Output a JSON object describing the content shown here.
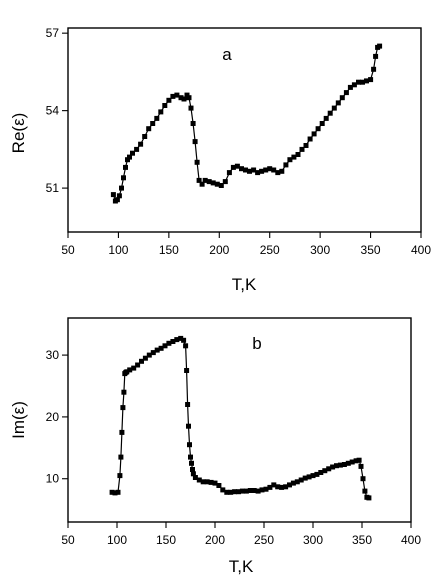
{
  "chart_data": [
    {
      "type": "line",
      "panel_label": "a",
      "xlabel": "T,K",
      "ylabel": "Re(ε)",
      "xlim": [
        50,
        400
      ],
      "ylim": [
        49.3,
        57.2
      ],
      "xticks": [
        50,
        100,
        150,
        200,
        250,
        300,
        350,
        400
      ],
      "yticks": [
        51,
        54,
        57
      ],
      "marker": "square",
      "color": "#000000",
      "x": [
        95,
        97,
        99,
        101,
        103,
        105,
        107,
        109,
        111,
        114,
        118,
        122,
        126,
        130,
        134,
        138,
        142,
        146,
        150,
        154,
        158,
        162,
        165,
        168,
        170,
        172,
        174,
        176,
        178,
        180,
        183,
        186,
        190,
        194,
        198,
        202,
        206,
        210,
        214,
        218,
        222,
        226,
        230,
        234,
        238,
        242,
        246,
        250,
        254,
        258,
        262,
        266,
        270,
        274,
        278,
        282,
        286,
        290,
        294,
        298,
        302,
        306,
        310,
        314,
        318,
        322,
        326,
        330,
        334,
        338,
        342,
        346,
        350,
        353,
        355,
        357,
        359
      ],
      "y": [
        50.75,
        50.5,
        50.55,
        50.7,
        51.0,
        51.4,
        51.8,
        52.1,
        52.2,
        52.35,
        52.5,
        52.7,
        53.0,
        53.3,
        53.5,
        53.7,
        53.95,
        54.2,
        54.4,
        54.55,
        54.6,
        54.5,
        54.45,
        54.6,
        54.5,
        54.1,
        53.5,
        52.8,
        52.0,
        51.3,
        51.15,
        51.3,
        51.25,
        51.2,
        51.15,
        51.1,
        51.25,
        51.6,
        51.8,
        51.85,
        51.75,
        51.7,
        51.65,
        51.7,
        51.6,
        51.65,
        51.7,
        51.75,
        51.7,
        51.6,
        51.65,
        51.9,
        52.1,
        52.2,
        52.3,
        52.5,
        52.65,
        52.9,
        53.1,
        53.3,
        53.5,
        53.7,
        53.9,
        54.1,
        54.3,
        54.5,
        54.7,
        54.9,
        55.0,
        55.1,
        55.1,
        55.15,
        55.2,
        55.6,
        56.1,
        56.45,
        56.5
      ]
    },
    {
      "type": "line",
      "panel_label": "b",
      "xlabel": "T,K",
      "ylabel": "Im(ε)",
      "xlim": [
        50,
        400
      ],
      "ylim": [
        3,
        36
      ],
      "xticks": [
        50,
        100,
        150,
        200,
        250,
        300,
        350,
        400
      ],
      "yticks": [
        10,
        20,
        30
      ],
      "marker": "square",
      "color": "#000000",
      "x": [
        95,
        98,
        101,
        103,
        104,
        105,
        106,
        107,
        108,
        109,
        110,
        113,
        117,
        121,
        125,
        129,
        133,
        137,
        141,
        145,
        149,
        153,
        157,
        161,
        165,
        168,
        170,
        171,
        172,
        173,
        174,
        175,
        176,
        177,
        178,
        180,
        184,
        188,
        192,
        196,
        200,
        204,
        208,
        212,
        216,
        220,
        224,
        228,
        232,
        236,
        240,
        244,
        248,
        252,
        256,
        260,
        264,
        268,
        272,
        276,
        280,
        284,
        288,
        292,
        296,
        300,
        304,
        308,
        312,
        316,
        320,
        324,
        328,
        332,
        336,
        340,
        344,
        347,
        349,
        351,
        353,
        355,
        357
      ],
      "y": [
        7.8,
        7.7,
        7.8,
        10.5,
        13.5,
        17.5,
        21.5,
        24,
        27,
        27.2,
        27.3,
        27.6,
        27.9,
        28.4,
        29.0,
        29.5,
        30.0,
        30.4,
        30.8,
        31.1,
        31.5,
        31.9,
        32.2,
        32.5,
        32.7,
        32.4,
        31.5,
        27.5,
        22,
        18.5,
        15.5,
        13.5,
        12.5,
        11.5,
        10.8,
        10.2,
        9.8,
        9.5,
        9.5,
        9.4,
        9.3,
        8.9,
        8.2,
        7.8,
        7.8,
        7.9,
        7.9,
        8.0,
        8.0,
        8.1,
        8.1,
        8.0,
        8.2,
        8.3,
        8.6,
        9.0,
        8.7,
        8.6,
        8.7,
        9.0,
        9.3,
        9.5,
        9.8,
        10.1,
        10.3,
        10.5,
        10.7,
        11.0,
        11.3,
        11.6,
        11.9,
        12.1,
        12.2,
        12.3,
        12.5,
        12.7,
        12.9,
        13.0,
        12.0,
        10.0,
        8.0,
        7.0,
        6.9
      ]
    }
  ]
}
